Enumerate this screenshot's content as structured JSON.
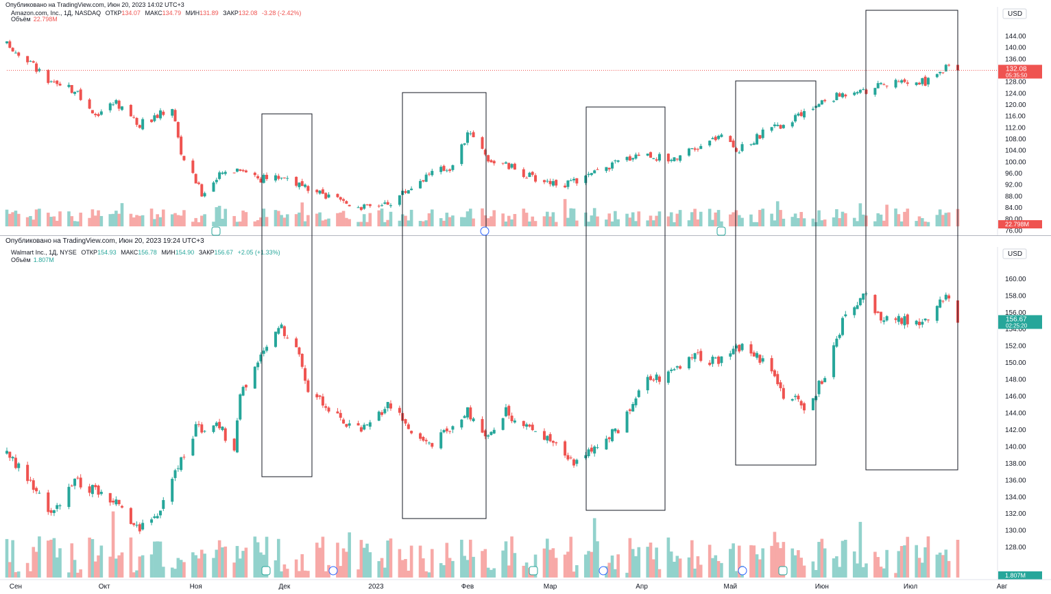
{
  "panel1": {
    "published_text": "Опубликовано на TradingView.com, Июн 20, 2023 14:02 UTC+3",
    "header": {
      "symbol": "Amazon.com, Inc., 1Д, NASDAQ",
      "open_label": "ОТКР",
      "open": "134.07",
      "high_label": "МАКС",
      "high": "134.79",
      "low_label": "МИН",
      "low": "131.89",
      "close_label": "ЗАКР",
      "close": "132.08",
      "change": "-3.28 (-2.42%)"
    },
    "volume_label": "Объём",
    "volume_value": "22.798M",
    "currency": "USD",
    "price_badge": "132.08",
    "price_badge_time": "05:35:50",
    "vol_badge": "22.798M",
    "colors": {
      "up": "#26a69a",
      "down": "#ef5350",
      "vol_up": "#92d2cc",
      "vol_down": "#f7a9a7"
    }
  },
  "panel2": {
    "published_text": "Опубликовано на TradingView.com, Июн 20, 2023 19:24 UTC+3",
    "header": {
      "symbol": "Walmart Inc., 1Д, NYSE",
      "open_label": "ОТКР",
      "open": "154.93",
      "high_label": "МАКС",
      "high": "156.78",
      "low_label": "МИН",
      "low": "154.90",
      "close_label": "ЗАКР",
      "close": "156.67",
      "change": "+2.05 (+1.33%)"
    },
    "volume_label": "Объём",
    "volume_value": "1.807M",
    "currency": "USD",
    "price_badge": "156.67",
    "price_badge_time": "02:25:20",
    "vol_badge": "1.807M"
  },
  "x_axis_labels": [
    "Сен",
    "Окт",
    "Ноя",
    "Дек",
    "2023",
    "Фев",
    "Мар",
    "Апр",
    "Май",
    "Июн",
    "Июл",
    "Авг"
  ],
  "chart_data": [
    {
      "type": "candlestick",
      "title": "Amazon.com, Inc., 1Д, NASDAQ",
      "ylabel": "USD",
      "y_ticks": [
        76,
        80,
        84,
        88,
        92,
        96,
        100,
        104,
        108,
        112,
        116,
        120,
        124,
        128,
        132,
        136,
        140,
        144
      ],
      "ylim": [
        75,
        147
      ],
      "close_path": [
        {
          "x": "2022-08-29",
          "y": 141
        },
        {
          "x": "2022-09-06",
          "y": 135
        },
        {
          "x": "2022-09-13",
          "y": 127
        },
        {
          "x": "2022-09-21",
          "y": 125
        },
        {
          "x": "2022-09-27",
          "y": 116
        },
        {
          "x": "2022-10-05",
          "y": 121
        },
        {
          "x": "2022-10-13",
          "y": 113
        },
        {
          "x": "2022-10-24",
          "y": 119
        },
        {
          "x": "2022-10-27",
          "y": 103
        },
        {
          "x": "2022-11-03",
          "y": 89
        },
        {
          "x": "2022-11-10",
          "y": 96
        },
        {
          "x": "2022-11-16",
          "y": 98
        },
        {
          "x": "2022-11-23",
          "y": 94
        },
        {
          "x": "2022-12-01",
          "y": 95
        },
        {
          "x": "2022-12-09",
          "y": 90
        },
        {
          "x": "2022-12-20",
          "y": 86
        },
        {
          "x": "2022-12-29",
          "y": 84
        },
        {
          "x": "2023-01-06",
          "y": 86
        },
        {
          "x": "2023-01-19",
          "y": 96
        },
        {
          "x": "2023-01-26",
          "y": 98
        },
        {
          "x": "2023-02-02",
          "y": 111
        },
        {
          "x": "2023-02-08",
          "y": 101
        },
        {
          "x": "2023-02-16",
          "y": 98
        },
        {
          "x": "2023-02-24",
          "y": 94
        },
        {
          "x": "2023-03-07",
          "y": 92
        },
        {
          "x": "2023-03-14",
          "y": 95
        },
        {
          "x": "2023-03-22",
          "y": 99
        },
        {
          "x": "2023-03-31",
          "y": 103
        },
        {
          "x": "2023-04-10",
          "y": 101
        },
        {
          "x": "2023-04-19",
          "y": 104
        },
        {
          "x": "2023-04-27",
          "y": 109
        },
        {
          "x": "2023-05-04",
          "y": 104
        },
        {
          "x": "2023-05-12",
          "y": 110
        },
        {
          "x": "2023-05-23",
          "y": 115
        },
        {
          "x": "2023-06-01",
          "y": 121
        },
        {
          "x": "2023-06-09",
          "y": 124
        },
        {
          "x": "2023-06-14",
          "y": 126
        },
        {
          "x": "2023-06-16",
          "y": 125
        },
        {
          "x": "2023-06-22",
          "y": 127
        },
        {
          "x": "2023-07-06",
          "y": 128
        },
        {
          "x": "2023-07-13",
          "y": 133
        },
        {
          "x": "2023-07-17",
          "y": 132
        }
      ]
    },
    {
      "type": "candlestick",
      "title": "Walmart Inc., 1Д, NYSE",
      "ylabel": "USD",
      "y_ticks": [
        128,
        130,
        132,
        134,
        136,
        138,
        140,
        142,
        144,
        146,
        148,
        150,
        152,
        154,
        156,
        158,
        160
      ],
      "ylim": [
        126.5,
        161.5
      ],
      "close_path": [
        {
          "x": "2022-08-29",
          "y": 139
        },
        {
          "x": "2022-09-06",
          "y": 136
        },
        {
          "x": "2022-09-13",
          "y": 132
        },
        {
          "x": "2022-09-21",
          "y": 136
        },
        {
          "x": "2022-09-27",
          "y": 135
        },
        {
          "x": "2022-10-05",
          "y": 133
        },
        {
          "x": "2022-10-13",
          "y": 130
        },
        {
          "x": "2022-10-19",
          "y": 132
        },
        {
          "x": "2022-10-24",
          "y": 136
        },
        {
          "x": "2022-11-01",
          "y": 142
        },
        {
          "x": "2022-11-07",
          "y": 143
        },
        {
          "x": "2022-11-14",
          "y": 140
        },
        {
          "x": "2022-11-16",
          "y": 146
        },
        {
          "x": "2022-11-21",
          "y": 150
        },
        {
          "x": "2022-11-30",
          "y": 154
        },
        {
          "x": "2022-12-05",
          "y": 152
        },
        {
          "x": "2022-12-09",
          "y": 147
        },
        {
          "x": "2022-12-16",
          "y": 144
        },
        {
          "x": "2022-12-22",
          "y": 143
        },
        {
          "x": "2022-12-29",
          "y": 142
        },
        {
          "x": "2023-01-05",
          "y": 145
        },
        {
          "x": "2023-01-10",
          "y": 143
        },
        {
          "x": "2023-01-18",
          "y": 140
        },
        {
          "x": "2023-01-24",
          "y": 142
        },
        {
          "x": "2023-02-01",
          "y": 144
        },
        {
          "x": "2023-02-07",
          "y": 141
        },
        {
          "x": "2023-02-14",
          "y": 144
        },
        {
          "x": "2023-02-21",
          "y": 142
        },
        {
          "x": "2023-03-01",
          "y": 141
        },
        {
          "x": "2023-03-08",
          "y": 138
        },
        {
          "x": "2023-03-15",
          "y": 140
        },
        {
          "x": "2023-03-24",
          "y": 142
        },
        {
          "x": "2023-03-31",
          "y": 147
        },
        {
          "x": "2023-04-10",
          "y": 149
        },
        {
          "x": "2023-04-19",
          "y": 151
        },
        {
          "x": "2023-04-27",
          "y": 150
        },
        {
          "x": "2023-05-04",
          "y": 152
        },
        {
          "x": "2023-05-12",
          "y": 150
        },
        {
          "x": "2023-05-19",
          "y": 146
        },
        {
          "x": "2023-05-26",
          "y": 145
        },
        {
          "x": "2023-06-02",
          "y": 148
        },
        {
          "x": "2023-06-08",
          "y": 155
        },
        {
          "x": "2023-06-16",
          "y": 158
        },
        {
          "x": "2023-06-22",
          "y": 155
        },
        {
          "x": "2023-07-06",
          "y": 155
        },
        {
          "x": "2023-07-13",
          "y": 158
        },
        {
          "x": "2023-07-17",
          "y": 155
        },
        {
          "x": "2023-07-20",
          "y": 156.67
        }
      ]
    }
  ]
}
